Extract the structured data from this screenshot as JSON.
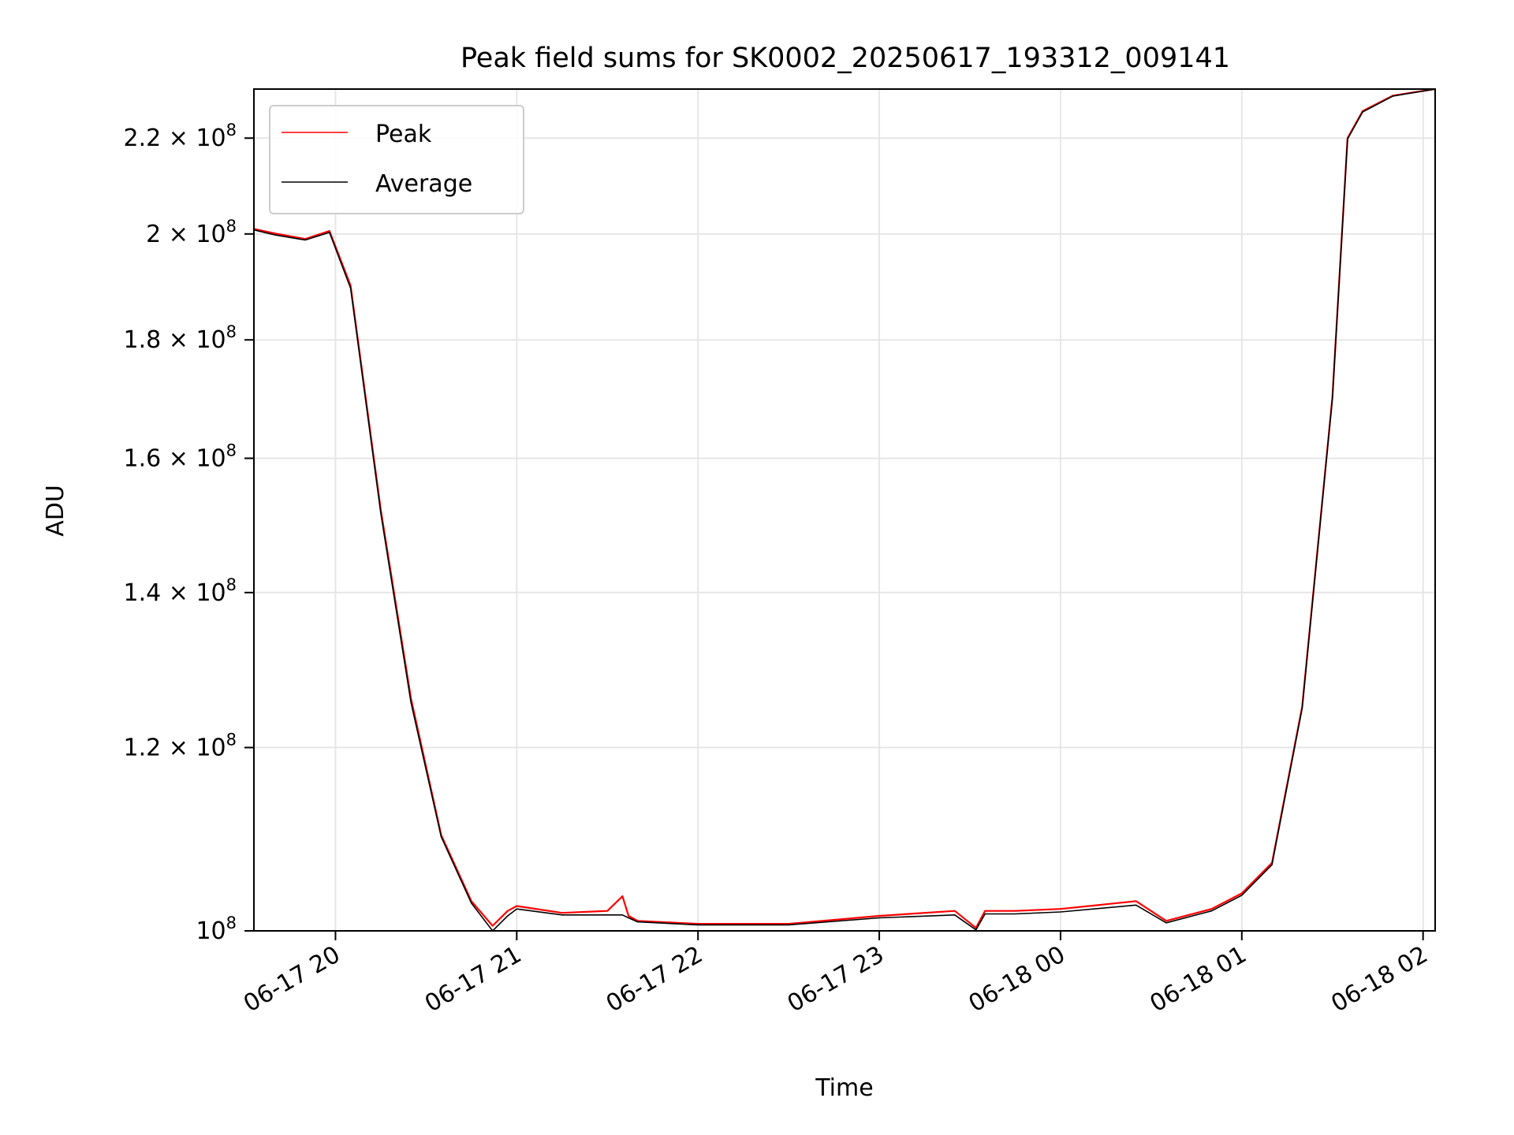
{
  "chart_data": {
    "type": "line",
    "title": "Peak field sums for SK0002_20250617_193312_009141",
    "xlabel": "Time",
    "ylabel": "ADU",
    "xlim": [
      "2025-06-17 19:33",
      "2025-06-18 02:04"
    ],
    "ylim": [
      100000000,
      231000000
    ],
    "yscale": "log",
    "grid": true,
    "legend_position": "upper-left",
    "x_ticks": [
      {
        "label": "06-17 20",
        "value": "2025-06-17 20:00"
      },
      {
        "label": "06-17 21",
        "value": "2025-06-17 21:00"
      },
      {
        "label": "06-17 22",
        "value": "2025-06-17 22:00"
      },
      {
        "label": "06-17 23",
        "value": "2025-06-17 23:00"
      },
      {
        "label": "06-18 00",
        "value": "2025-06-18 00:00"
      },
      {
        "label": "06-18 01",
        "value": "2025-06-18 01:00"
      },
      {
        "label": "06-18 02",
        "value": "2025-06-18 02:00"
      }
    ],
    "y_ticks": [
      {
        "mant": "",
        "exp": "8",
        "value": 100000000
      },
      {
        "mant": "1.2",
        "exp": "8",
        "value": 120000000
      },
      {
        "mant": "1.4",
        "exp": "8",
        "value": 140000000
      },
      {
        "mant": "1.6",
        "exp": "8",
        "value": 160000000
      },
      {
        "mant": "1.8",
        "exp": "8",
        "value": 180000000
      },
      {
        "mant": "2",
        "exp": "8",
        "value": 200000000
      },
      {
        "mant": "2.2",
        "exp": "8",
        "value": 220000000
      }
    ],
    "series": [
      {
        "name": "Peak",
        "color": "#ff0000",
        "x": [
          "2025-06-17 19:33",
          "2025-06-17 19:40",
          "2025-06-17 19:50",
          "2025-06-17 19:58",
          "2025-06-17 20:05",
          "2025-06-17 20:15",
          "2025-06-17 20:25",
          "2025-06-17 20:35",
          "2025-06-17 20:45",
          "2025-06-17 20:52",
          "2025-06-17 20:57",
          "2025-06-17 21:00",
          "2025-06-17 21:15",
          "2025-06-17 21:30",
          "2025-06-17 21:35",
          "2025-06-17 21:37",
          "2025-06-17 21:40",
          "2025-06-17 22:00",
          "2025-06-17 22:30",
          "2025-06-17 23:00",
          "2025-06-17 23:25",
          "2025-06-17 23:32",
          "2025-06-17 23:35",
          "2025-06-17 23:45",
          "2025-06-18 00:00",
          "2025-06-18 00:25",
          "2025-06-18 00:35",
          "2025-06-18 00:50",
          "2025-06-18 01:00",
          "2025-06-18 01:10",
          "2025-06-18 01:20",
          "2025-06-18 01:30",
          "2025-06-18 01:35",
          "2025-06-18 01:40",
          "2025-06-18 01:50",
          "2025-06-18 02:04"
        ],
        "values": [
          201000000,
          200100000,
          199000000,
          200600000,
          190000000,
          152000000,
          126000000,
          110000000,
          103000000,
          100500000,
          102000000,
          102500000,
          101800000,
          102000000,
          103500000,
          101500000,
          101000000,
          100700000,
          100700000,
          101500000,
          102000000,
          100300000,
          102000000,
          102000000,
          102200000,
          103000000,
          101000000,
          102200000,
          103800000,
          107000000,
          125000000,
          170000000,
          220000000,
          226000000,
          229500000,
          231000000
        ]
      },
      {
        "name": "Average",
        "color": "#000000",
        "x": [
          "2025-06-17 19:33",
          "2025-06-17 19:40",
          "2025-06-17 19:50",
          "2025-06-17 19:58",
          "2025-06-17 20:05",
          "2025-06-17 20:15",
          "2025-06-17 20:25",
          "2025-06-17 20:35",
          "2025-06-17 20:45",
          "2025-06-17 20:52",
          "2025-06-17 20:57",
          "2025-06-17 21:00",
          "2025-06-17 21:15",
          "2025-06-17 21:30",
          "2025-06-17 21:35",
          "2025-06-17 21:37",
          "2025-06-17 21:40",
          "2025-06-17 22:00",
          "2025-06-17 22:30",
          "2025-06-17 23:00",
          "2025-06-17 23:25",
          "2025-06-17 23:32",
          "2025-06-17 23:35",
          "2025-06-17 23:45",
          "2025-06-18 00:00",
          "2025-06-18 00:25",
          "2025-06-18 00:35",
          "2025-06-18 00:50",
          "2025-06-18 01:00",
          "2025-06-18 01:10",
          "2025-06-18 01:20",
          "2025-06-18 01:30",
          "2025-06-18 01:35",
          "2025-06-18 01:40",
          "2025-06-18 01:50",
          "2025-06-18 02:04"
        ],
        "values": [
          200800000,
          199800000,
          198800000,
          200300000,
          189500000,
          151500000,
          125500000,
          109800000,
          102800000,
          100000000,
          101500000,
          102200000,
          101600000,
          101600000,
          101600000,
          101300000,
          100900000,
          100600000,
          100600000,
          101300000,
          101600000,
          100100000,
          101700000,
          101700000,
          101900000,
          102600000,
          100800000,
          102000000,
          103600000,
          106800000,
          124800000,
          169800000,
          219800000,
          225800000,
          229400000,
          231000000
        ]
      }
    ]
  }
}
